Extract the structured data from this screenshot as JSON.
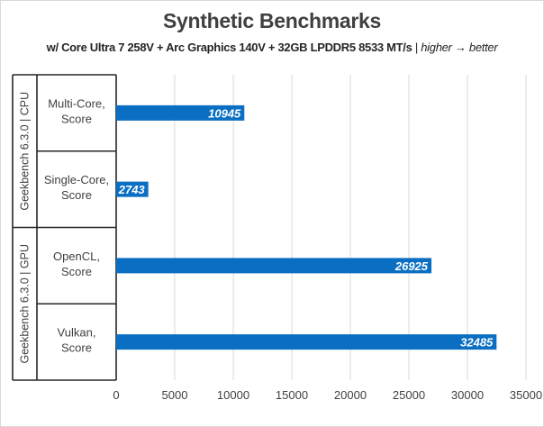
{
  "chart_data": {
    "type": "bar",
    "orientation": "horizontal",
    "title": "Synthetic Benchmarks",
    "subtitle_bold": "w/ Core Ultra 7 258V + Arc Graphics 140V + 32GB LPDDR5 8533 MT/s",
    "subtitle_sep": " | ",
    "subtitle_italic": "higher → better",
    "groups": [
      {
        "label": "Geekbench 6.3.0 | CPU",
        "categories": [
          "Multi-Core, Score",
          "Single-Core, Score"
        ]
      },
      {
        "label": "Geekbench 6.3.0 | GPU",
        "categories": [
          "OpenCL, Score",
          "Vulkan, Score"
        ]
      }
    ],
    "categories": [
      "Multi-Core, Score",
      "Single-Core, Score",
      "OpenCL, Score",
      "Vulkan, Score"
    ],
    "category_lines": [
      [
        "Multi-Core,",
        "Score"
      ],
      [
        "Single-Core,",
        "Score"
      ],
      [
        "OpenCL,",
        "Score"
      ],
      [
        "Vulkan,",
        "Score"
      ]
    ],
    "values": [
      10945,
      2743,
      26925,
      32485
    ],
    "xlim": [
      0,
      35000
    ],
    "xticks": [
      "0",
      "5000",
      "10000",
      "15000",
      "20000",
      "25000",
      "30000",
      "35000"
    ],
    "grid": true,
    "bar_color": "#0a6fc2",
    "label_color": "#ffffff"
  }
}
